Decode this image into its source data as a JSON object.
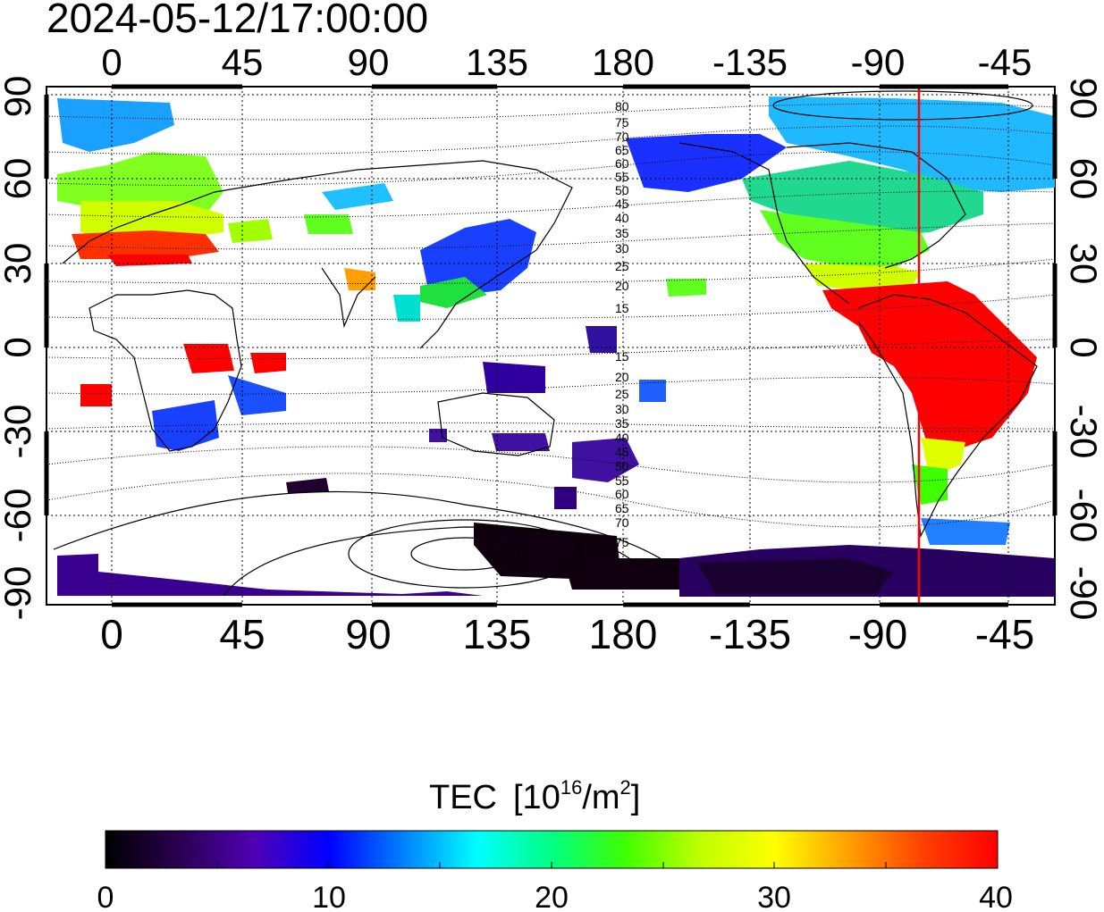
{
  "timestamp": "2024-05-12/17:00:00",
  "map": {
    "x_ticks_top": [
      "0",
      "45",
      "90",
      "135",
      "180",
      "-135",
      "-90",
      "-45"
    ],
    "x_ticks_bottom": [
      "0",
      "45",
      "90",
      "135",
      "180",
      "-135",
      "-90",
      "-45"
    ],
    "y_ticks_left": [
      "90",
      "60",
      "30",
      "0",
      "-30",
      "-60",
      "-90"
    ],
    "y_ticks_right": [
      "90",
      "60",
      "30",
      "0",
      "-30",
      "-60",
      "-90"
    ],
    "terminator_longitude": -74,
    "terminator_color": "#ff0000",
    "contour_labels_north": [
      "80",
      "75",
      "70",
      "65",
      "60",
      "55",
      "50",
      "45",
      "40",
      "35",
      "30",
      "25",
      "20",
      "15"
    ],
    "contour_labels_south": [
      "15",
      "20",
      "25",
      "30",
      "35",
      "40",
      "45",
      "50",
      "55",
      "60",
      "65",
      "70",
      "75"
    ]
  },
  "colorbar": {
    "title": "TEC",
    "unit_base": "[10",
    "unit_exp": "16",
    "unit_mid": "/m",
    "unit_exp2": "2",
    "unit_end": "]",
    "ticks": [
      "0",
      "10",
      "20",
      "30",
      "40"
    ],
    "min": 0,
    "max": 40,
    "stops": [
      "#000000",
      "#2a0050",
      "#5000b4",
      "#0000ff",
      "#0080ff",
      "#00ffff",
      "#00ff80",
      "#40ff00",
      "#c0ff00",
      "#ffff00",
      "#ffa000",
      "#ff4000",
      "#ff0000"
    ]
  }
}
